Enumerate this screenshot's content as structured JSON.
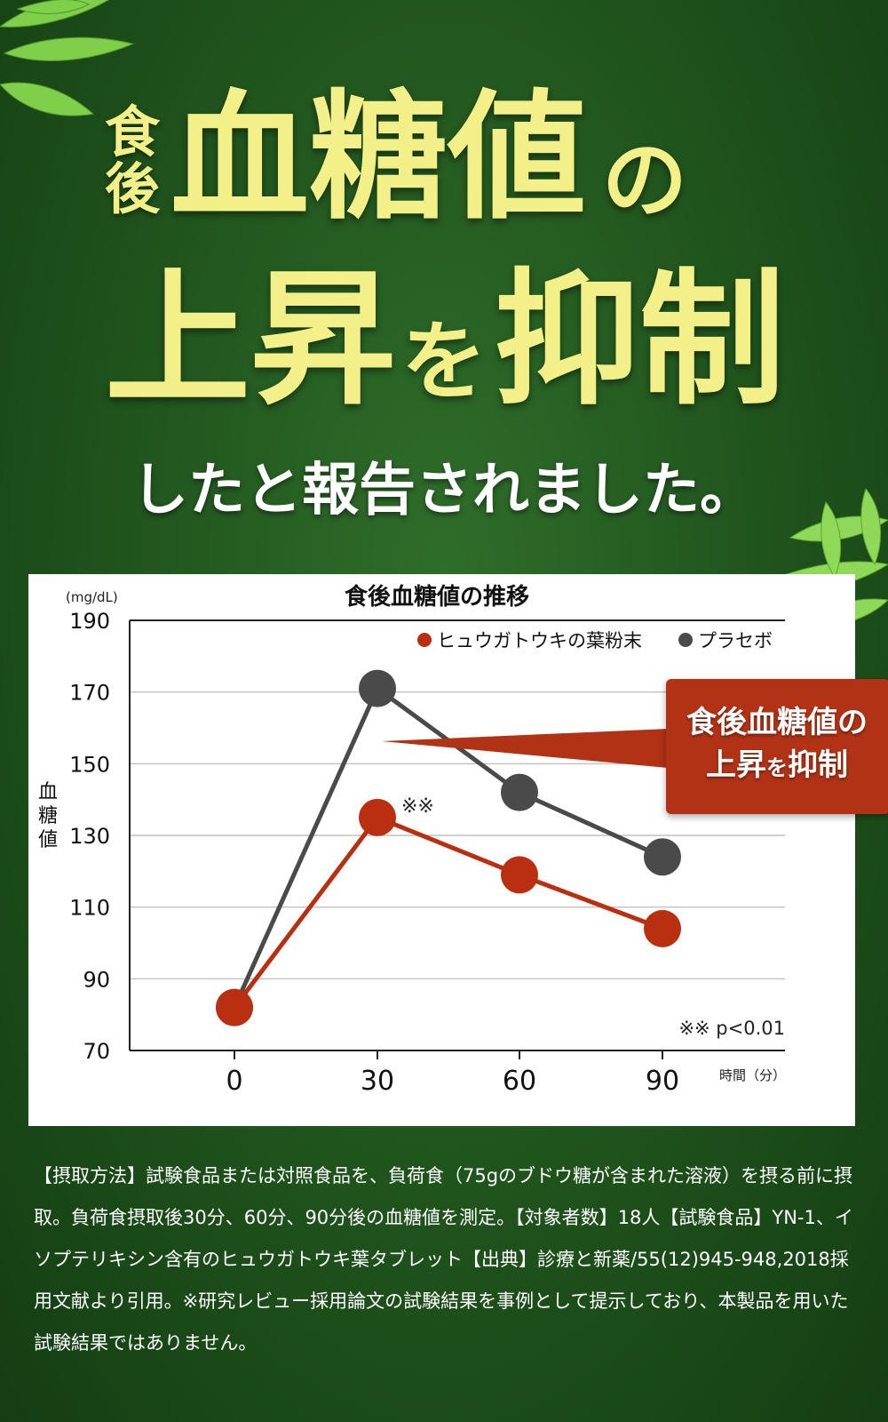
{
  "headline": {
    "small_1": "食",
    "small_2": "後",
    "big_1": "血糖値",
    "no_1": "の",
    "big_2a": "上昇",
    "wo": "を",
    "big_2b": "抑制",
    "sub": "したと報告されました。"
  },
  "callout": {
    "line1": "食後血糖値の",
    "line2a": "上昇",
    "line2b": "を",
    "line2c": "抑制"
  },
  "colors": {
    "headline": "#f3f08a",
    "series_herb": "#b92f10",
    "series_placebo": "#4a4a4a",
    "callout": "#b23216"
  },
  "chart_data": {
    "type": "line",
    "title": "食後血糖値の推移",
    "unit": "(mg/dL)",
    "ylabel": "血糖値",
    "xlabel": "時間（分）",
    "x": [
      0,
      30,
      60,
      90
    ],
    "ylim": [
      70,
      190
    ],
    "yticks": [
      70,
      90,
      110,
      130,
      150,
      170,
      190
    ],
    "grid": true,
    "legend_position": "top-right",
    "series": [
      {
        "name": "ヒュウガトウキの葉粉末",
        "values": [
          82,
          135,
          119,
          104
        ],
        "color": "#b92f10"
      },
      {
        "name": "プラセボ",
        "values": [
          82,
          171,
          142,
          124
        ],
        "color": "#4a4a4a"
      }
    ],
    "significance_mark": "※※",
    "footnote": "※※ p<0.01"
  },
  "note": "【摂取方法】試験食品または対照食品を、負荷食（75gのブドウ糖が含まれた溶液）を摂る前に摂取。負荷食摂取後30分、60分、90分後の血糖値を測定。【対象者数】18人【試験食品】YN-1、イソプテリキシン含有のヒュウガトウキ葉タブレット【出典】診療と新薬/55(12)945-948,2018採用文献より引用。※研究レビュー採用論文の試験結果を事例として提示しており、本製品を用いた試験結果ではありません。"
}
